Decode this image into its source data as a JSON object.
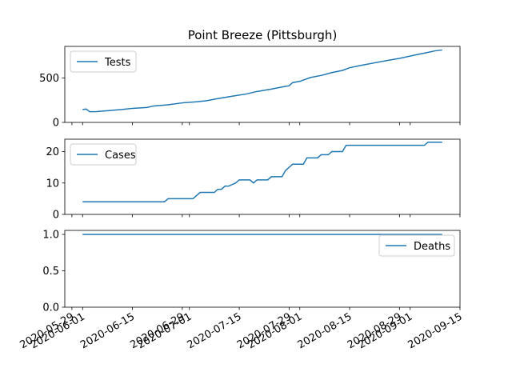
{
  "chart_data": [
    {
      "type": "line",
      "title": "Point Breeze (Pittsburgh)",
      "legend": "upper left",
      "x": [
        "2020-06-01",
        "2020-06-02",
        "2020-06-03",
        "2020-06-05",
        "2020-06-08",
        "2020-06-12",
        "2020-06-15",
        "2020-06-19",
        "2020-06-21",
        "2020-06-25",
        "2020-06-29",
        "2020-07-03",
        "2020-07-06",
        "2020-07-09",
        "2020-07-13",
        "2020-07-17",
        "2020-07-20",
        "2020-07-24",
        "2020-07-27",
        "2020-07-29",
        "2020-07-30",
        "2020-08-01",
        "2020-08-04",
        "2020-08-07",
        "2020-08-10",
        "2020-08-13",
        "2020-08-15",
        "2020-08-18",
        "2020-08-22",
        "2020-08-26",
        "2020-08-29",
        "2020-09-02",
        "2020-09-05",
        "2020-09-08",
        "2020-09-10"
      ],
      "series": [
        {
          "name": "Tests",
          "color": "#1f77b4",
          "values": [
            145,
            150,
            120,
            122,
            132,
            145,
            158,
            168,
            185,
            198,
            220,
            232,
            245,
            268,
            295,
            320,
            348,
            375,
            398,
            412,
            448,
            462,
            505,
            528,
            560,
            585,
            615,
            640,
            670,
            700,
            720,
            755,
            780,
            805,
            815
          ]
        }
      ],
      "ylim": [
        0,
        855
      ],
      "yticks": [
        0,
        500
      ]
    },
    {
      "type": "line",
      "legend": "upper left",
      "x": [
        "2020-06-01",
        "2020-06-24",
        "2020-06-25",
        "2020-07-02",
        "2020-07-04",
        "2020-07-08",
        "2020-07-09",
        "2020-07-10",
        "2020-07-11",
        "2020-07-12",
        "2020-07-14",
        "2020-07-15",
        "2020-07-18",
        "2020-07-19",
        "2020-07-20",
        "2020-07-23",
        "2020-07-24",
        "2020-07-27",
        "2020-07-28",
        "2020-07-30",
        "2020-08-02",
        "2020-08-03",
        "2020-08-06",
        "2020-08-07",
        "2020-08-09",
        "2020-08-10",
        "2020-08-13",
        "2020-08-14",
        "2020-09-05",
        "2020-09-06",
        "2020-09-10"
      ],
      "series": [
        {
          "name": "Cases",
          "color": "#1f77b4",
          "values": [
            4,
            4,
            5,
            5,
            7,
            7,
            8,
            8,
            9,
            9,
            10,
            11,
            11,
            10,
            11,
            11,
            12,
            12,
            14,
            16,
            16,
            18,
            18,
            19,
            19,
            20,
            20,
            22,
            22,
            23,
            23
          ]
        }
      ],
      "ylim": [
        0,
        23.95
      ],
      "yticks": [
        0,
        10,
        20
      ]
    },
    {
      "type": "line",
      "legend": "upper right",
      "x": [
        "2020-06-01",
        "2020-09-10"
      ],
      "series": [
        {
          "name": "Deaths",
          "color": "#1f77b4",
          "values": [
            1,
            1
          ]
        }
      ],
      "ylim": [
        0,
        1.055
      ],
      "yticks": [
        {
          "value": 0,
          "label": "0.0"
        },
        {
          "value": 0.5,
          "label": "0.5"
        },
        {
          "value": 1,
          "label": "1.0"
        }
      ],
      "xlim": [
        "2020-05-27",
        "2020-09-15"
      ],
      "xticks": [
        "2020-05-29",
        "2020-06-01",
        "2020-06-15",
        "2020-06-29",
        "2020-07-01",
        "2020-07-15",
        "2020-07-29",
        "2020-08-01",
        "2020-08-15",
        "2020-08-29",
        "2020-09-01",
        "2020-09-15"
      ]
    }
  ]
}
